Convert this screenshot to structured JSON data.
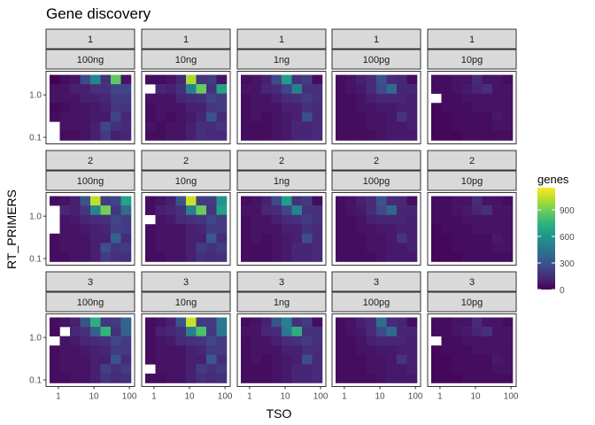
{
  "chart_data": {
    "type": "heatmap",
    "title": "Gene discovery",
    "xlabel": "TSO",
    "ylabel": "RT_PRIMERS",
    "x_ticks": [
      "1",
      "10",
      "100"
    ],
    "y_ticks": [
      "0.1",
      "1.0"
    ],
    "x_scale": "log10",
    "y_scale": "log10",
    "grid": false,
    "facet_rows": [
      "1",
      "2",
      "3"
    ],
    "facet_cols": [
      "100ng",
      "10ng",
      "1ng",
      "100pg",
      "10pg"
    ],
    "legend": {
      "title": "genes",
      "breaks": [
        "900",
        "600",
        "300",
        "0"
      ],
      "break_values": [
        900,
        600,
        300,
        0
      ],
      "range": [
        0,
        1150
      ],
      "placement": "right",
      "colors": [
        "#440154",
        "#482878",
        "#3e4989",
        "#31688e",
        "#26828e",
        "#1f9e89",
        "#35b779",
        "#6ece58",
        "#b5de2b",
        "#fde725"
      ]
    },
    "grid_dims": {
      "columns": 8,
      "rows": 7
    },
    "panels": [
      {
        "row": "1",
        "col": "100ng",
        "values": [
          [
            0,
            40,
            60,
            260,
            520,
            160,
            860,
            60
          ],
          [
            60,
            60,
            100,
            100,
            160,
            160,
            240,
            240
          ],
          [
            60,
            60,
            60,
            100,
            100,
            120,
            200,
            200
          ],
          [
            20,
            40,
            60,
            60,
            80,
            100,
            180,
            180
          ],
          [
            40,
            60,
            60,
            60,
            80,
            80,
            240,
            120
          ],
          [
            null,
            60,
            60,
            60,
            100,
            240,
            160,
            140
          ],
          [
            null,
            40,
            40,
            60,
            100,
            200,
            100,
            120
          ]
        ]
      },
      {
        "row": "1",
        "col": "10ng",
        "values": [
          [
            40,
            40,
            60,
            120,
            1000,
            180,
            200,
            60
          ],
          [
            null,
            120,
            100,
            160,
            500,
            880,
            160,
            660
          ],
          [
            60,
            60,
            60,
            120,
            140,
            160,
            240,
            200
          ],
          [
            40,
            60,
            60,
            60,
            100,
            100,
            180,
            200
          ],
          [
            40,
            60,
            40,
            60,
            80,
            120,
            300,
            140
          ],
          [
            60,
            40,
            60,
            60,
            100,
            160,
            140,
            180
          ],
          [
            40,
            40,
            60,
            60,
            100,
            160,
            140,
            140
          ]
        ]
      },
      {
        "row": "1",
        "col": "1ng",
        "values": [
          [
            40,
            60,
            100,
            260,
            640,
            160,
            200,
            40
          ],
          [
            60,
            60,
            120,
            140,
            240,
            500,
            160,
            160
          ],
          [
            40,
            60,
            60,
            100,
            140,
            160,
            200,
            160
          ],
          [
            40,
            60,
            60,
            60,
            100,
            100,
            160,
            140
          ],
          [
            40,
            60,
            40,
            60,
            80,
            100,
            280,
            140
          ],
          [
            40,
            40,
            40,
            60,
            80,
            120,
            120,
            140
          ],
          [
            40,
            40,
            40,
            60,
            80,
            120,
            120,
            140
          ]
        ]
      },
      {
        "row": "1",
        "col": "100pg",
        "values": [
          [
            40,
            60,
            100,
            140,
            300,
            140,
            120,
            40
          ],
          [
            40,
            60,
            80,
            140,
            260,
            400,
            120,
            120
          ],
          [
            40,
            40,
            60,
            100,
            120,
            120,
            120,
            100
          ],
          [
            40,
            40,
            60,
            60,
            80,
            80,
            100,
            100
          ],
          [
            40,
            40,
            40,
            60,
            60,
            80,
            180,
            100
          ],
          [
            40,
            40,
            40,
            60,
            60,
            80,
            80,
            100
          ],
          [
            40,
            40,
            40,
            40,
            60,
            80,
            80,
            80
          ]
        ]
      },
      {
        "row": "1",
        "col": "10pg",
        "values": [
          [
            40,
            40,
            60,
            60,
            140,
            60,
            60,
            40
          ],
          [
            40,
            40,
            60,
            80,
            120,
            160,
            60,
            60
          ],
          [
            null,
            40,
            40,
            60,
            60,
            60,
            60,
            60
          ],
          [
            20,
            40,
            40,
            40,
            60,
            60,
            60,
            60
          ],
          [
            20,
            20,
            40,
            40,
            40,
            40,
            80,
            60
          ],
          [
            20,
            20,
            40,
            40,
            40,
            40,
            60,
            60
          ],
          [
            20,
            20,
            20,
            40,
            40,
            40,
            40,
            40
          ]
        ]
      },
      {
        "row": "2",
        "col": "100ng",
        "values": [
          [
            40,
            60,
            100,
            300,
            1040,
            200,
            240,
            660
          ],
          [
            null,
            120,
            100,
            180,
            520,
            900,
            180,
            400
          ],
          [
            null,
            60,
            80,
            120,
            140,
            160,
            240,
            200
          ],
          [
            null,
            60,
            60,
            80,
            100,
            120,
            220,
            200
          ],
          [
            40,
            60,
            60,
            60,
            100,
            100,
            360,
            140
          ],
          [
            40,
            60,
            60,
            60,
            100,
            280,
            180,
            200
          ],
          [
            40,
            40,
            60,
            60,
            100,
            200,
            160,
            160
          ]
        ]
      },
      {
        "row": "2",
        "col": "10ng",
        "values": [
          [
            40,
            60,
            100,
            300,
            1060,
            200,
            200,
            600
          ],
          [
            40,
            100,
            120,
            160,
            500,
            880,
            180,
            660
          ],
          [
            null,
            60,
            80,
            140,
            160,
            180,
            240,
            200
          ],
          [
            40,
            60,
            60,
            60,
            100,
            120,
            200,
            200
          ],
          [
            40,
            60,
            60,
            60,
            100,
            100,
            320,
            140
          ],
          [
            40,
            60,
            60,
            60,
            100,
            200,
            160,
            200
          ],
          [
            40,
            40,
            60,
            60,
            100,
            160,
            140,
            160
          ]
        ]
      },
      {
        "row": "2",
        "col": "1ng",
        "values": [
          [
            40,
            60,
            100,
            260,
            640,
            160,
            200,
            40
          ],
          [
            60,
            60,
            120,
            140,
            240,
            500,
            160,
            160
          ],
          [
            40,
            60,
            60,
            100,
            140,
            160,
            200,
            160
          ],
          [
            40,
            60,
            60,
            60,
            100,
            100,
            160,
            140
          ],
          [
            40,
            60,
            40,
            60,
            80,
            100,
            280,
            140
          ],
          [
            40,
            40,
            40,
            60,
            80,
            120,
            120,
            140
          ],
          [
            40,
            40,
            40,
            60,
            80,
            120,
            120,
            140
          ]
        ]
      },
      {
        "row": "2",
        "col": "100pg",
        "values": [
          [
            40,
            60,
            100,
            140,
            300,
            140,
            120,
            40
          ],
          [
            40,
            60,
            80,
            140,
            260,
            380,
            120,
            120
          ],
          [
            40,
            40,
            60,
            100,
            120,
            120,
            120,
            100
          ],
          [
            40,
            40,
            60,
            60,
            80,
            80,
            100,
            100
          ],
          [
            40,
            40,
            40,
            60,
            60,
            80,
            180,
            100
          ],
          [
            40,
            40,
            40,
            60,
            60,
            80,
            80,
            100
          ],
          [
            40,
            40,
            40,
            40,
            60,
            80,
            80,
            80
          ]
        ]
      },
      {
        "row": "2",
        "col": "10pg",
        "values": [
          [
            40,
            40,
            60,
            60,
            140,
            60,
            60,
            40
          ],
          [
            40,
            40,
            60,
            80,
            120,
            160,
            60,
            60
          ],
          [
            40,
            40,
            40,
            60,
            60,
            60,
            60,
            60
          ],
          [
            20,
            40,
            40,
            40,
            60,
            60,
            60,
            60
          ],
          [
            20,
            20,
            40,
            40,
            40,
            40,
            80,
            60
          ],
          [
            20,
            20,
            40,
            40,
            40,
            40,
            60,
            60
          ],
          [
            20,
            20,
            20,
            40,
            40,
            40,
            40,
            40
          ]
        ]
      },
      {
        "row": "3",
        "col": "100ng",
        "values": [
          [
            40,
            60,
            100,
            300,
            720,
            180,
            200,
            360
          ],
          [
            40,
            null,
            120,
            160,
            360,
            760,
            160,
            360
          ],
          [
            null,
            60,
            80,
            120,
            140,
            160,
            240,
            200
          ],
          [
            40,
            60,
            60,
            80,
            100,
            120,
            200,
            200
          ],
          [
            40,
            60,
            60,
            60,
            100,
            100,
            300,
            140
          ],
          [
            40,
            60,
            60,
            60,
            100,
            220,
            160,
            200
          ],
          [
            40,
            40,
            60,
            60,
            100,
            180,
            140,
            160
          ]
        ]
      },
      {
        "row": "3",
        "col": "10ng",
        "values": [
          [
            40,
            60,
            100,
            300,
            1060,
            200,
            200,
            460
          ],
          [
            40,
            100,
            120,
            160,
            500,
            820,
            180,
            460
          ],
          [
            40,
            60,
            80,
            140,
            160,
            180,
            240,
            200
          ],
          [
            40,
            60,
            60,
            60,
            100,
            120,
            200,
            200
          ],
          [
            40,
            60,
            60,
            60,
            100,
            100,
            320,
            140
          ],
          [
            null,
            60,
            60,
            60,
            100,
            200,
            160,
            200
          ],
          [
            40,
            40,
            60,
            60,
            100,
            160,
            140,
            160
          ]
        ]
      },
      {
        "row": "3",
        "col": "1ng",
        "values": [
          [
            40,
            60,
            100,
            300,
            500,
            160,
            200,
            40
          ],
          [
            60,
            60,
            120,
            140,
            460,
            720,
            160,
            160
          ],
          [
            40,
            60,
            60,
            100,
            140,
            160,
            200,
            160
          ],
          [
            40,
            60,
            60,
            60,
            100,
            100,
            160,
            140
          ],
          [
            40,
            60,
            40,
            60,
            80,
            100,
            280,
            140
          ],
          [
            40,
            40,
            40,
            60,
            80,
            120,
            120,
            140
          ],
          [
            40,
            40,
            40,
            60,
            80,
            120,
            120,
            140
          ]
        ]
      },
      {
        "row": "3",
        "col": "100pg",
        "values": [
          [
            40,
            60,
            100,
            140,
            420,
            140,
            120,
            40
          ],
          [
            40,
            60,
            80,
            140,
            260,
            400,
            120,
            120
          ],
          [
            40,
            40,
            60,
            100,
            120,
            120,
            120,
            100
          ],
          [
            40,
            40,
            60,
            60,
            80,
            80,
            100,
            100
          ],
          [
            40,
            40,
            40,
            60,
            60,
            80,
            180,
            100
          ],
          [
            40,
            40,
            40,
            60,
            60,
            80,
            80,
            100
          ],
          [
            40,
            40,
            40,
            40,
            60,
            80,
            80,
            80
          ]
        ]
      },
      {
        "row": "3",
        "col": "10pg",
        "values": [
          [
            40,
            40,
            60,
            60,
            140,
            60,
            60,
            40
          ],
          [
            40,
            40,
            60,
            80,
            120,
            160,
            60,
            60
          ],
          [
            null,
            40,
            40,
            60,
            60,
            60,
            60,
            60
          ],
          [
            20,
            40,
            40,
            40,
            60,
            60,
            60,
            60
          ],
          [
            20,
            20,
            40,
            40,
            40,
            40,
            80,
            60
          ],
          [
            20,
            20,
            40,
            40,
            40,
            40,
            60,
            60
          ],
          [
            20,
            20,
            20,
            40,
            40,
            40,
            40,
            40
          ]
        ]
      }
    ]
  }
}
